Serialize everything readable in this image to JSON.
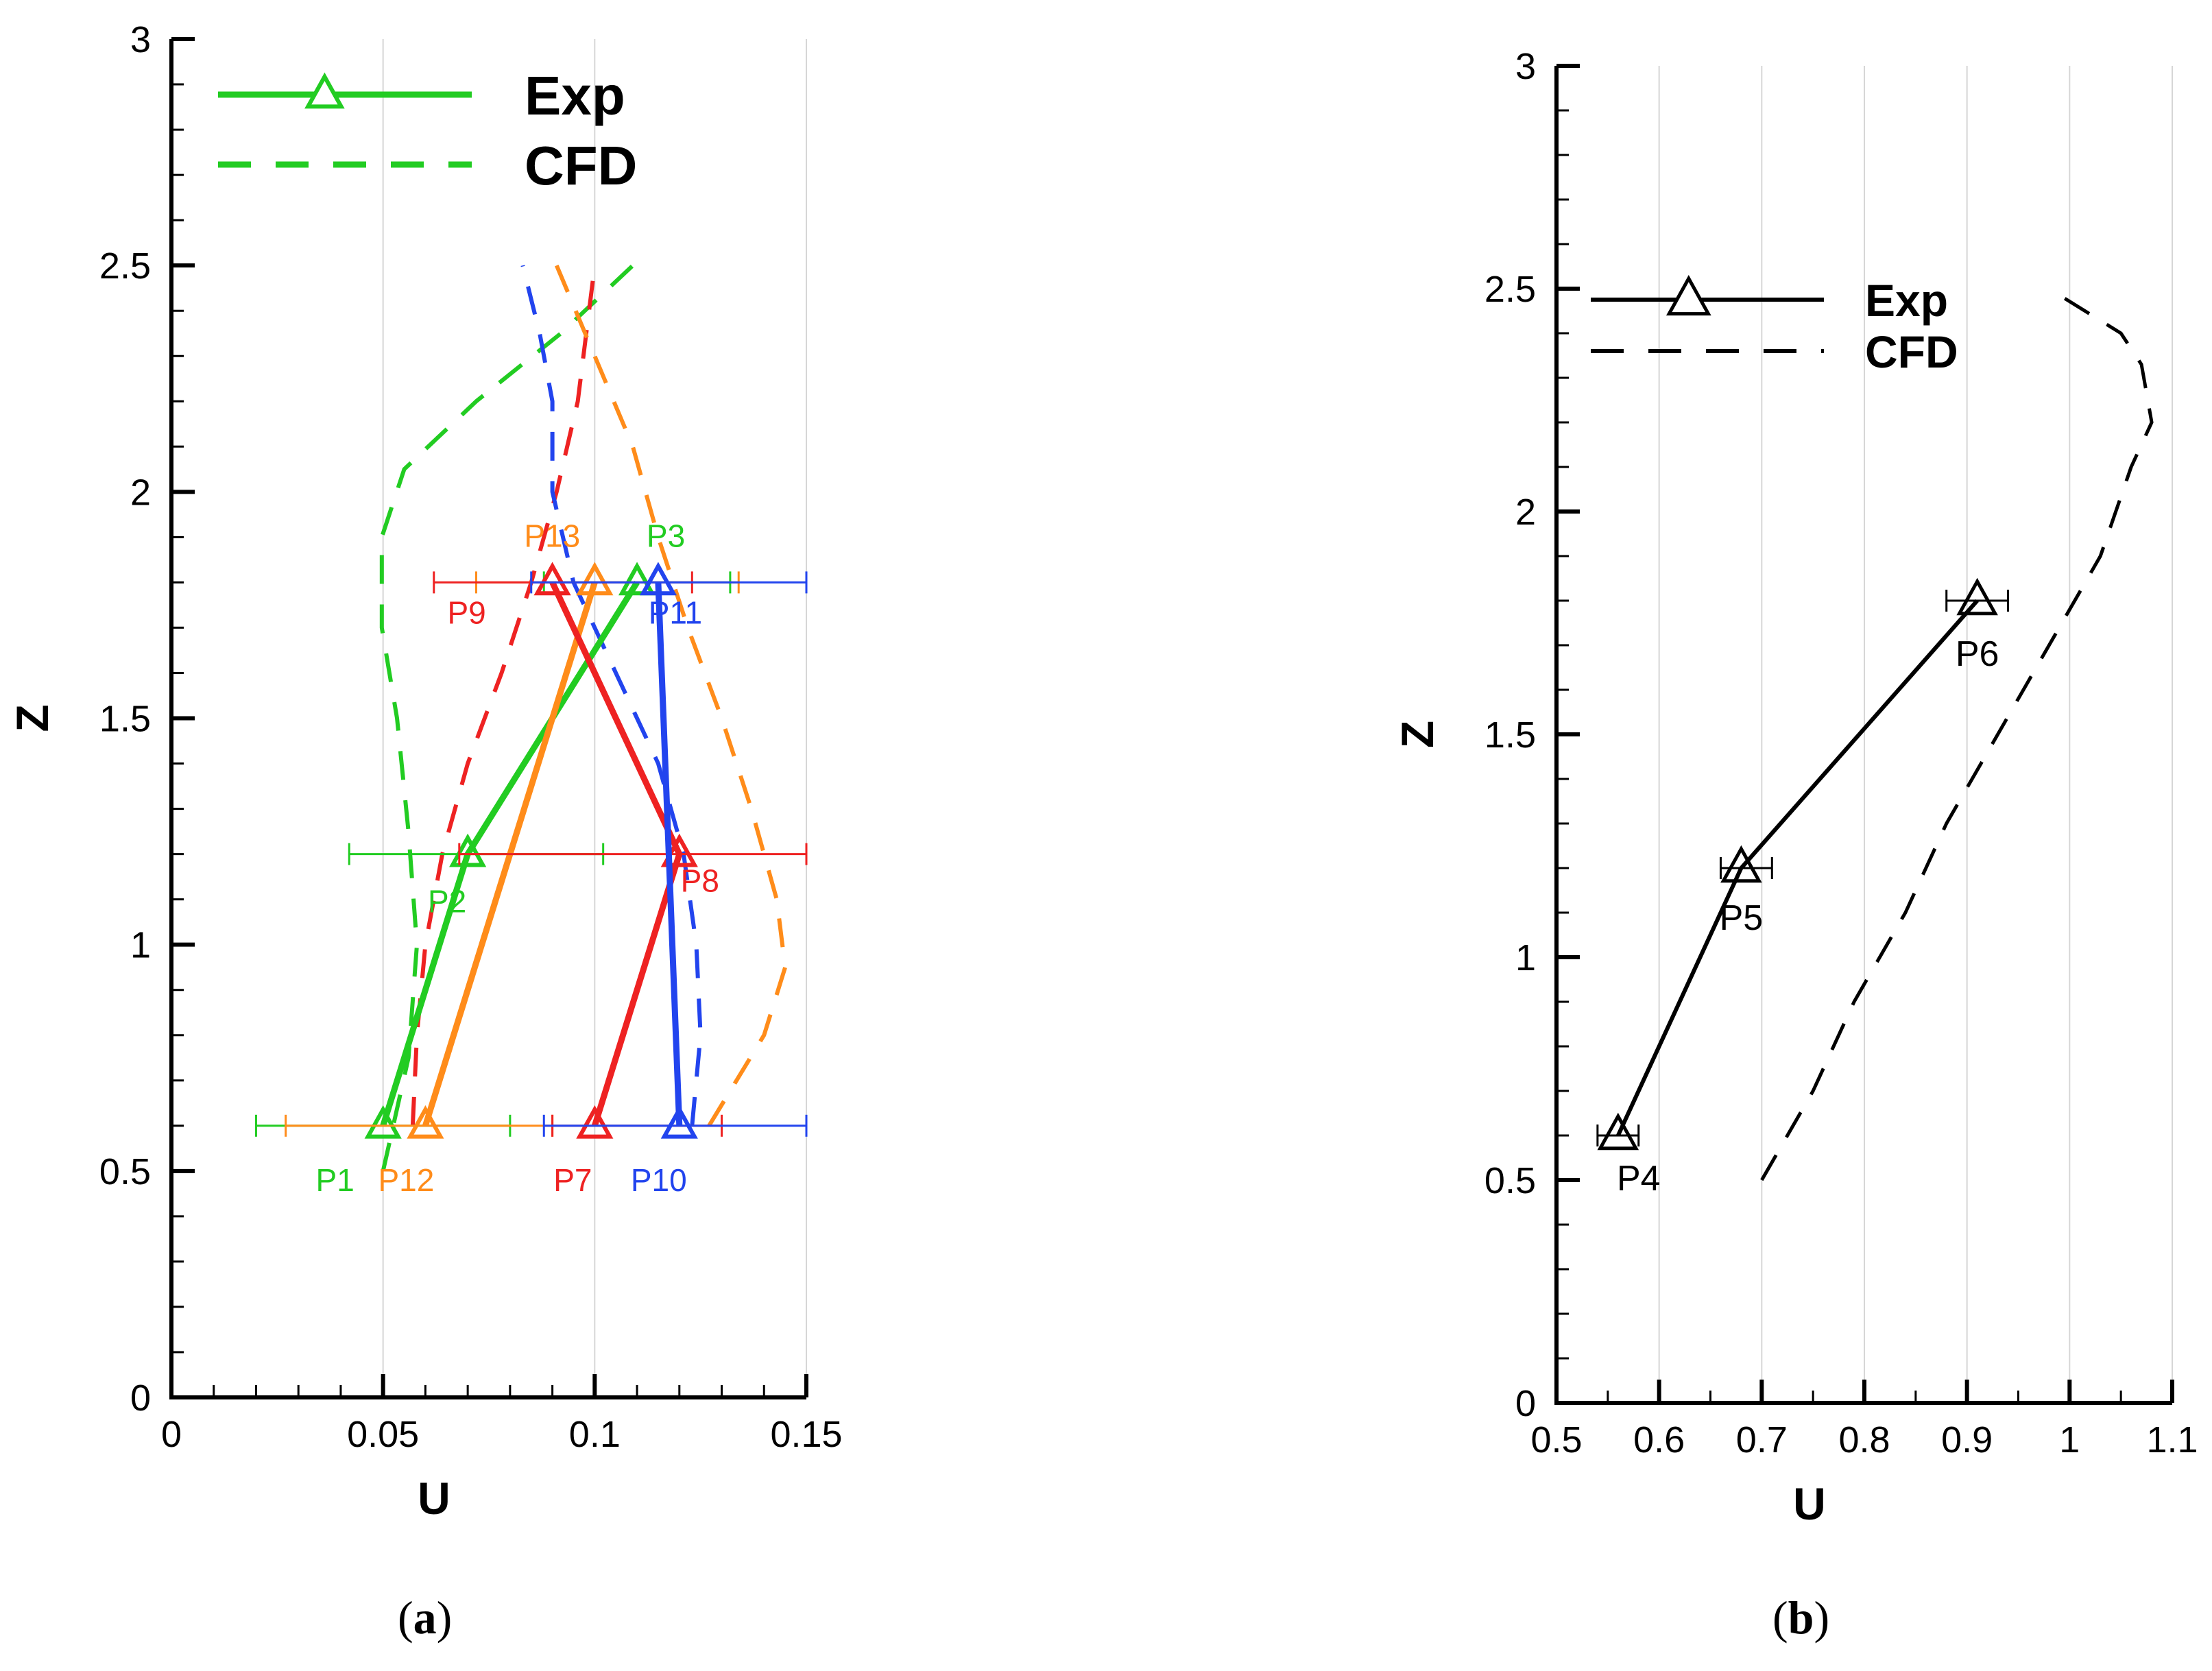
{
  "panel_labels": {
    "a": "a",
    "b": "b"
  },
  "chart_data": [
    {
      "type": "line",
      "panel": "a",
      "xlabel": "U",
      "ylabel": "Z",
      "xlim": [
        0,
        0.15
      ],
      "ylim": [
        0,
        3
      ],
      "xticks": [
        "0",
        "0.05",
        "0.1",
        "0.15"
      ],
      "yticks": [
        "0",
        "0.5",
        "1",
        "1.5",
        "2",
        "2.5",
        "3"
      ],
      "legend": {
        "position": "top-left",
        "entries": [
          {
            "label": "Exp",
            "style": "solid-triangle",
            "color": "#22cc22"
          },
          {
            "label": "CFD",
            "style": "dashed",
            "color": "#22cc22"
          }
        ]
      },
      "series": [
        {
          "name": "Exp green",
          "color": "#22cc22",
          "points": [
            {
              "label": "P1",
              "u": 0.05,
              "z": 0.6,
              "err": [
                0.02,
                0.08
              ]
            },
            {
              "label": "P2",
              "u": 0.07,
              "z": 1.2,
              "err": [
                0.042,
                0.102
              ]
            },
            {
              "label": "P3",
              "u": 0.11,
              "z": 1.8,
              "err": [
                0.088,
                0.132
              ]
            }
          ]
        },
        {
          "name": "Exp orange",
          "color": "#ff8c1a",
          "points": [
            {
              "label": "P12",
              "u": 0.06,
              "z": 0.6,
              "err": [
                0.027,
                0.09
              ]
            },
            {
              "label": "P13",
              "u": 0.1,
              "z": 1.8,
              "err": [
                0.072,
                0.134
              ]
            }
          ]
        },
        {
          "name": "Exp red",
          "color": "#ee2222",
          "points": [
            {
              "label": "P7",
              "u": 0.1,
              "z": 0.6,
              "err": [
                0.09,
                0.13
              ]
            },
            {
              "label": "P8",
              "u": 0.12,
              "z": 1.2,
              "err": [
                0.068,
                0.15
              ]
            },
            {
              "label": "P9",
              "u": 0.09,
              "z": 1.8,
              "err": [
                0.062,
                0.123
              ]
            }
          ]
        },
        {
          "name": "Exp blue",
          "color": "#2244ee",
          "points": [
            {
              "label": "P10",
              "u": 0.12,
              "z": 0.6,
              "err": [
                0.088,
                0.15
              ]
            },
            {
              "label": "P11",
              "u": 0.115,
              "z": 1.8,
              "err": [
                0.085,
                0.15
              ]
            }
          ]
        }
      ],
      "cfd": [
        {
          "color": "#22cc22",
          "u": [
            0.05,
            0.056,
            0.058,
            0.056,
            0.0533,
            0.0497,
            0.0497,
            0.055,
            0.072,
            0.092,
            0.109
          ],
          "z": [
            0.5,
            0.75,
            1.0,
            1.25,
            1.5,
            1.7,
            1.9,
            2.05,
            2.2,
            2.35,
            2.5
          ]
        },
        {
          "color": "#ee2222",
          "u": [
            0.057,
            0.058,
            0.06,
            0.064,
            0.07,
            0.078,
            0.085,
            0.091,
            0.096,
            0.1
          ],
          "z": [
            0.6,
            0.8,
            1.0,
            1.2,
            1.4,
            1.6,
            1.8,
            2.0,
            2.2,
            2.5
          ]
        },
        {
          "color": "#ff8c1a",
          "u": [
            0.127,
            0.14,
            0.145,
            0.143,
            0.137,
            0.13,
            0.122,
            0.115,
            0.109,
            0.1,
            0.091
          ],
          "z": [
            0.6,
            0.8,
            0.95,
            1.1,
            1.3,
            1.5,
            1.7,
            1.9,
            2.1,
            2.3,
            2.5
          ]
        },
        {
          "color": "#2244ee",
          "u": [
            0.123,
            0.125,
            0.124,
            0.121,
            0.115,
            0.105,
            0.095,
            0.09,
            0.09,
            0.087,
            0.083
          ],
          "z": [
            0.6,
            0.8,
            1.0,
            1.2,
            1.4,
            1.6,
            1.8,
            2.0,
            2.2,
            2.35,
            2.5
          ]
        }
      ]
    },
    {
      "type": "line",
      "panel": "b",
      "xlabel": "U",
      "ylabel": "Z",
      "xlim": [
        0.5,
        1.1
      ],
      "ylim": [
        0,
        3
      ],
      "xticks": [
        "0.5",
        "0.6",
        "0.7",
        "0.8",
        "0.9",
        "1",
        "1.1"
      ],
      "yticks": [
        "0",
        "0.5",
        "1",
        "1.5",
        "2",
        "2.5",
        "3"
      ],
      "legend": {
        "position": "upper-left",
        "entries": [
          {
            "label": "Exp",
            "style": "solid-triangle",
            "color": "#000000"
          },
          {
            "label": "CFD",
            "style": "dashed",
            "color": "#000000"
          }
        ]
      },
      "series": [
        {
          "name": "Exp",
          "color": "#000000",
          "points": [
            {
              "label": "P4",
              "u": 0.56,
              "z": 0.6,
              "err": [
                0.54,
                0.58
              ]
            },
            {
              "label": "P5",
              "u": 0.68,
              "z": 1.2,
              "err": [
                0.66,
                0.71
              ]
            },
            {
              "label": "P6",
              "u": 0.91,
              "z": 1.8,
              "err": [
                0.88,
                0.94
              ]
            }
          ]
        }
      ],
      "cfd": [
        {
          "color": "#000000",
          "u": [
            0.7,
            0.75,
            0.79,
            0.84,
            0.88,
            0.93,
            0.98,
            1.03,
            1.06,
            1.08,
            1.07,
            1.05,
            0.98
          ],
          "z": [
            0.5,
            0.7,
            0.9,
            1.1,
            1.3,
            1.5,
            1.7,
            1.9,
            2.1,
            2.2,
            2.33,
            2.4,
            2.5
          ]
        }
      ]
    }
  ]
}
